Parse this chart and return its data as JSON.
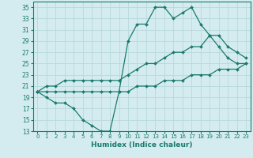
{
  "xlabel": "Humidex (Indice chaleur)",
  "background_color": "#d4ecef",
  "line_color": "#1a7a6e",
  "grid_color": "#b8d8dc",
  "x_values": [
    0,
    1,
    2,
    3,
    4,
    5,
    6,
    7,
    8,
    9,
    10,
    11,
    12,
    13,
    14,
    15,
    16,
    17,
    18,
    19,
    20,
    21,
    22,
    23
  ],
  "y_max": [
    20,
    19,
    18,
    18,
    17,
    15,
    14,
    13,
    13,
    20,
    29,
    32,
    32,
    35,
    35,
    33,
    34,
    35,
    32,
    30,
    28,
    26,
    25,
    25
  ],
  "y_mid": [
    20,
    21,
    21,
    22,
    22,
    22,
    22,
    22,
    22,
    22,
    23,
    24,
    25,
    25,
    26,
    27,
    27,
    28,
    28,
    30,
    30,
    28,
    27,
    26
  ],
  "y_min": [
    20,
    20,
    20,
    20,
    20,
    20,
    20,
    20,
    20,
    20,
    20,
    21,
    21,
    21,
    22,
    22,
    22,
    23,
    23,
    23,
    24,
    24,
    24,
    25
  ],
  "ylim": [
    13,
    36
  ],
  "xlim": [
    -0.5,
    23.5
  ],
  "yticks": [
    13,
    15,
    17,
    19,
    21,
    23,
    25,
    27,
    29,
    31,
    33,
    35
  ],
  "xticks": [
    0,
    1,
    2,
    3,
    4,
    5,
    6,
    7,
    8,
    9,
    10,
    11,
    12,
    13,
    14,
    15,
    16,
    17,
    18,
    19,
    20,
    21,
    22,
    23
  ]
}
